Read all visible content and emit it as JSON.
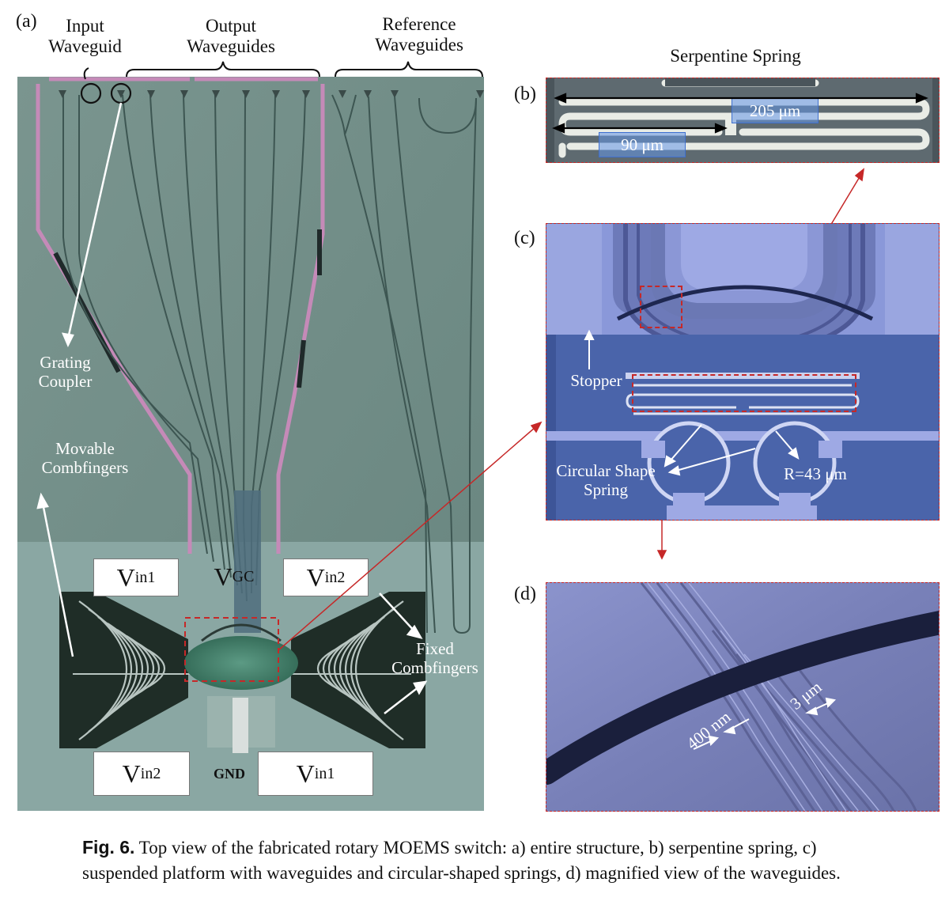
{
  "panel_a": {
    "letter": "(a)",
    "input_label": [
      "Input",
      "Waveguid"
    ],
    "output_label": [
      "Output",
      "Waveguides"
    ],
    "reference_label": [
      "Reference",
      "Waveguides"
    ],
    "grating_label": [
      "Grating",
      "Coupler"
    ],
    "movable_label": [
      "Movable",
      "Combfingers"
    ],
    "fixed_label": [
      "Fixed",
      "Combfingers"
    ],
    "pads": {
      "vin1_top": {
        "main": "V",
        "sub": "in1"
      },
      "vgc": {
        "main": "V",
        "sub": "GC"
      },
      "vin2_top": {
        "main": "V",
        "sub": "in2"
      },
      "vin2_bottom": {
        "main": "V",
        "sub": "in2"
      },
      "gnd": "GND",
      "vin1_bottom": {
        "main": "V",
        "sub": "in1"
      }
    }
  },
  "panel_b": {
    "letter": "(b)",
    "title": "Serpentine Spring",
    "dim_long": "205 μm",
    "dim_short": "90 μm"
  },
  "panel_c": {
    "letter": "(c)",
    "stopper_label": "Stopper",
    "circular_label": [
      "Circular Shape",
      "Spring"
    ],
    "radius_label": "R=43 μm"
  },
  "panel_d": {
    "letter": "(d)",
    "gap_label": "400 nm",
    "width_label": "3 μm"
  },
  "caption": {
    "fig_number": "Fig. 6.",
    "text": "Top view of the fabricated rotary MOEMS switch: a) entire structure, b) serpentine spring, c) suspended platform with waveguides and circular-shaped springs, d) magnified view of the waveguides."
  },
  "colors": {
    "chip": "#6f8c86",
    "pink_trace": "#c58ab8",
    "platform": "#3e7a66",
    "panel_c_bg": "#4763a6",
    "panel_d_bg": "#7b84bc",
    "dashed_red": "#c62828"
  }
}
